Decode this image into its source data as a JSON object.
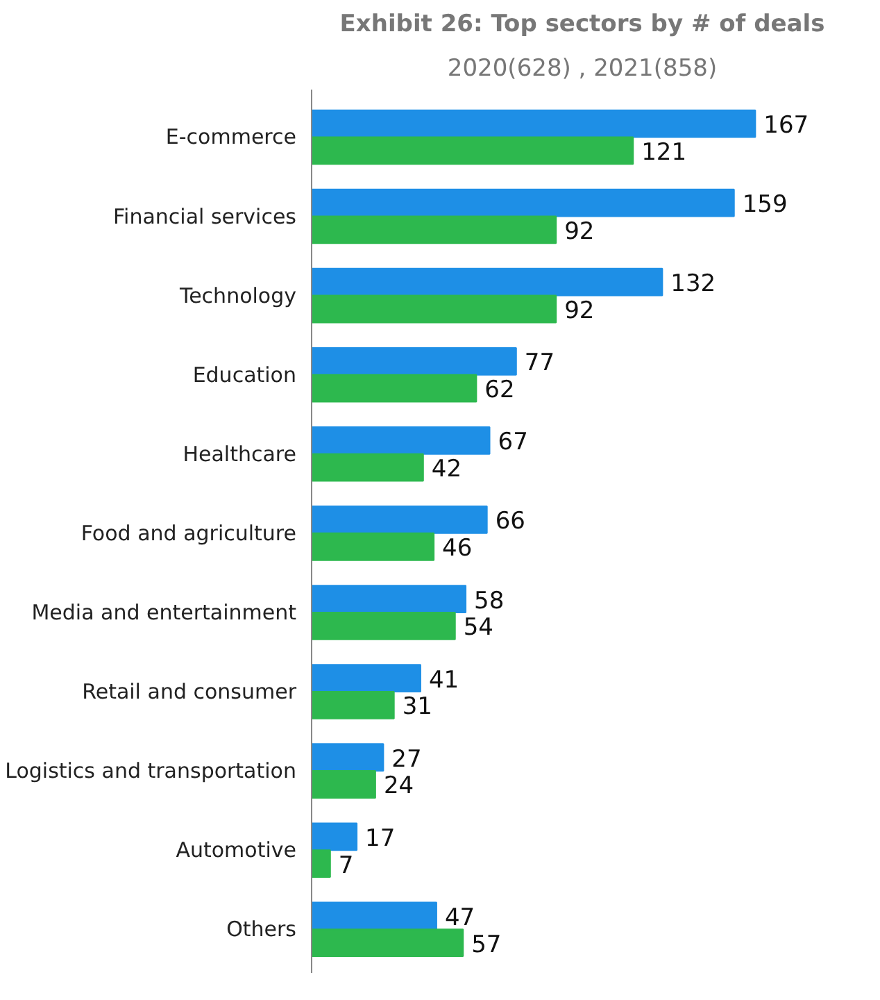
{
  "chart_data": {
    "type": "bar",
    "orientation": "horizontal",
    "title": "Exhibit 26: Top sectors by # of deals",
    "subtitle": "2020(628) , 2021(858)",
    "categories": [
      "E-commerce",
      "Financial services",
      "Technology",
      "Education",
      "Healthcare",
      "Food and agriculture",
      "Media and entertainment",
      "Retail and consumer",
      "Logistics and transportation",
      "Automotive",
      "Others"
    ],
    "series": [
      {
        "color": "#1e8fe6",
        "values": [
          167,
          159,
          132,
          77,
          67,
          66,
          58,
          41,
          27,
          17,
          47
        ]
      },
      {
        "color": "#2db84e",
        "values": [
          121,
          92,
          92,
          62,
          42,
          46,
          54,
          31,
          24,
          7,
          57
        ]
      }
    ],
    "data_labels": true,
    "grid": false
  }
}
